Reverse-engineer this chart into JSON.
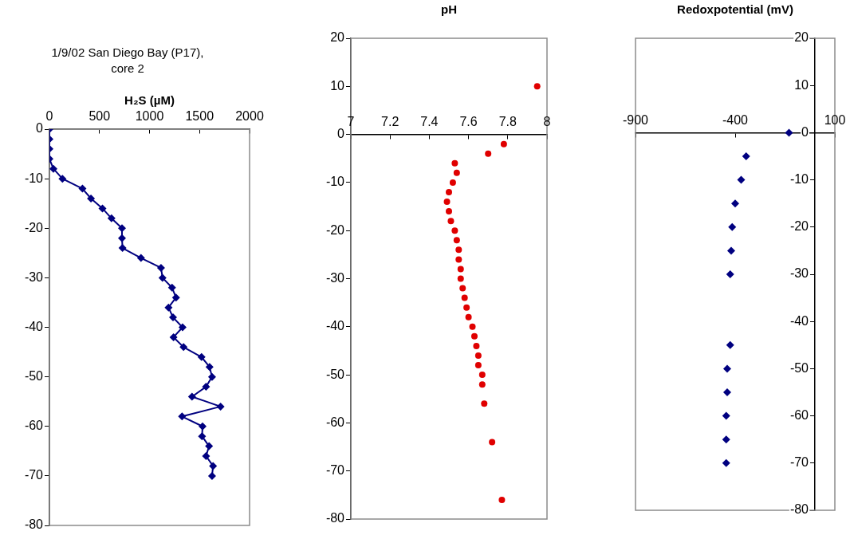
{
  "chart_data": [
    {
      "type": "line",
      "title": "H₂S (µM)",
      "annotations": [
        "1/9/02 San Diego Bay (P17), core 2"
      ],
      "marker": "diamond",
      "color": "#000080",
      "x": [
        0,
        0,
        0,
        0,
        40,
        130,
        330,
        415,
        530,
        620,
        725,
        725,
        730,
        915,
        1115,
        1130,
        1225,
        1265,
        1190,
        1235,
        1330,
        1240,
        1340,
        1520,
        1600,
        1625,
        1565,
        1425,
        1710,
        1325,
        1530,
        1525,
        1595,
        1565,
        1635,
        1625
      ],
      "values": [
        0,
        -2,
        -4,
        -6,
        -8,
        -10,
        -12,
        -14,
        -16,
        -18,
        -20,
        -22,
        -24,
        -26,
        -28,
        -30,
        -32,
        -34,
        -36,
        -38,
        -40,
        -42,
        -44,
        -46,
        -48,
        -50,
        -52,
        -54,
        -56,
        -58,
        -60,
        -62,
        -64,
        -66,
        -68,
        -70
      ],
      "xlim": [
        0,
        2000
      ],
      "xticks": [
        0,
        500,
        1000,
        1500,
        2000
      ],
      "ylim": [
        -80,
        0
      ],
      "yticks": [
        0,
        -10,
        -20,
        -30,
        -40,
        -50,
        -60,
        -70,
        -80
      ]
    },
    {
      "type": "scatter",
      "title": "pH",
      "marker": "circle",
      "color": "#e00000",
      "x": [
        7.95,
        7.78,
        7.7,
        7.53,
        7.54,
        7.52,
        7.5,
        7.49,
        7.5,
        7.51,
        7.53,
        7.54,
        7.55,
        7.55,
        7.56,
        7.56,
        7.57,
        7.58,
        7.59,
        7.6,
        7.62,
        7.63,
        7.64,
        7.65,
        7.65,
        7.67,
        7.67,
        7.68,
        7.72,
        7.77
      ],
      "values": [
        10,
        -2,
        -4,
        -6,
        -8,
        -10,
        -12,
        -14,
        -16,
        -18,
        -20,
        -22,
        -24,
        -26,
        -28,
        -30,
        -32,
        -34,
        -36,
        -38,
        -40,
        -42,
        -44,
        -46,
        -48,
        -50,
        -52,
        -56,
        -64,
        -76
      ],
      "xlim": [
        7,
        8
      ],
      "xticks": [
        7,
        7.2,
        7.4,
        7.6,
        7.8,
        8
      ],
      "ylim": [
        -80,
        20
      ],
      "yticks": [
        20,
        10,
        0,
        -10,
        -20,
        -30,
        -40,
        -50,
        -60,
        -70,
        -80
      ]
    },
    {
      "type": "scatter",
      "title": "Redoxpotential (mV)",
      "marker": "diamond",
      "color": "#000080",
      "x": [
        -130,
        -345,
        -370,
        -400,
        -415,
        -420,
        -425,
        -425,
        -440,
        -440,
        -445,
        -445,
        -445
      ],
      "values": [
        0,
        -5,
        -10,
        -15,
        -20,
        -25,
        -30,
        -45,
        -50,
        -55,
        -60,
        -65,
        -70
      ],
      "xlim": [
        -900,
        100
      ],
      "xticks": [
        -900,
        -400,
        100
      ],
      "ylim": [
        -80,
        20
      ],
      "yticks": [
        20,
        10,
        0,
        -10,
        -20,
        -30,
        -40,
        -50,
        -60,
        -70,
        -80
      ]
    }
  ]
}
